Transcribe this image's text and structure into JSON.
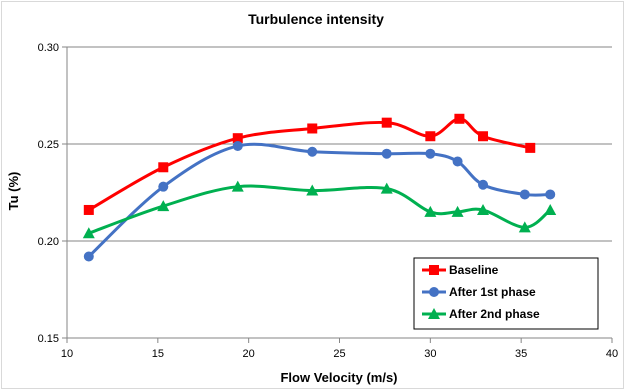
{
  "chart_data": {
    "type": "line",
    "title": "Turbulence intensity",
    "xlabel": "Flow Velocity (m/s)",
    "ylabel": "Tu (%)",
    "xlim": [
      10,
      40
    ],
    "ylim": [
      0.15,
      0.3
    ],
    "x_ticks": [
      "10",
      "15",
      "20",
      "25",
      "30",
      "35",
      "40"
    ],
    "y_ticks": [
      "0.15",
      "0.20",
      "0.25",
      "0.30"
    ],
    "grid": {
      "horizontal": true,
      "vertical": false
    },
    "legend_position": "bottom-right",
    "series": [
      {
        "name": "Baseline",
        "color": "#ff0000",
        "marker": "square",
        "x": [
          11.2,
          15.3,
          19.4,
          23.5,
          27.6,
          30.0,
          31.6,
          32.9,
          35.5
        ],
        "y": [
          0.216,
          0.238,
          0.253,
          0.258,
          0.261,
          0.254,
          0.263,
          0.254,
          0.248
        ]
      },
      {
        "name": "After 1st phase",
        "color": "#4472c4",
        "marker": "circle",
        "x": [
          11.2,
          15.3,
          19.4,
          23.5,
          27.6,
          30.0,
          31.5,
          32.9,
          35.2,
          36.6
        ],
        "y": [
          0.192,
          0.228,
          0.249,
          0.246,
          0.245,
          0.245,
          0.241,
          0.229,
          0.224,
          0.224
        ]
      },
      {
        "name": "After 2nd phase",
        "color": "#00b050",
        "marker": "triangle",
        "x": [
          11.2,
          15.3,
          19.4,
          23.5,
          27.6,
          30.0,
          31.5,
          32.9,
          35.2,
          36.6
        ],
        "y": [
          0.204,
          0.218,
          0.228,
          0.226,
          0.227,
          0.215,
          0.215,
          0.216,
          0.207,
          0.216
        ]
      }
    ]
  }
}
